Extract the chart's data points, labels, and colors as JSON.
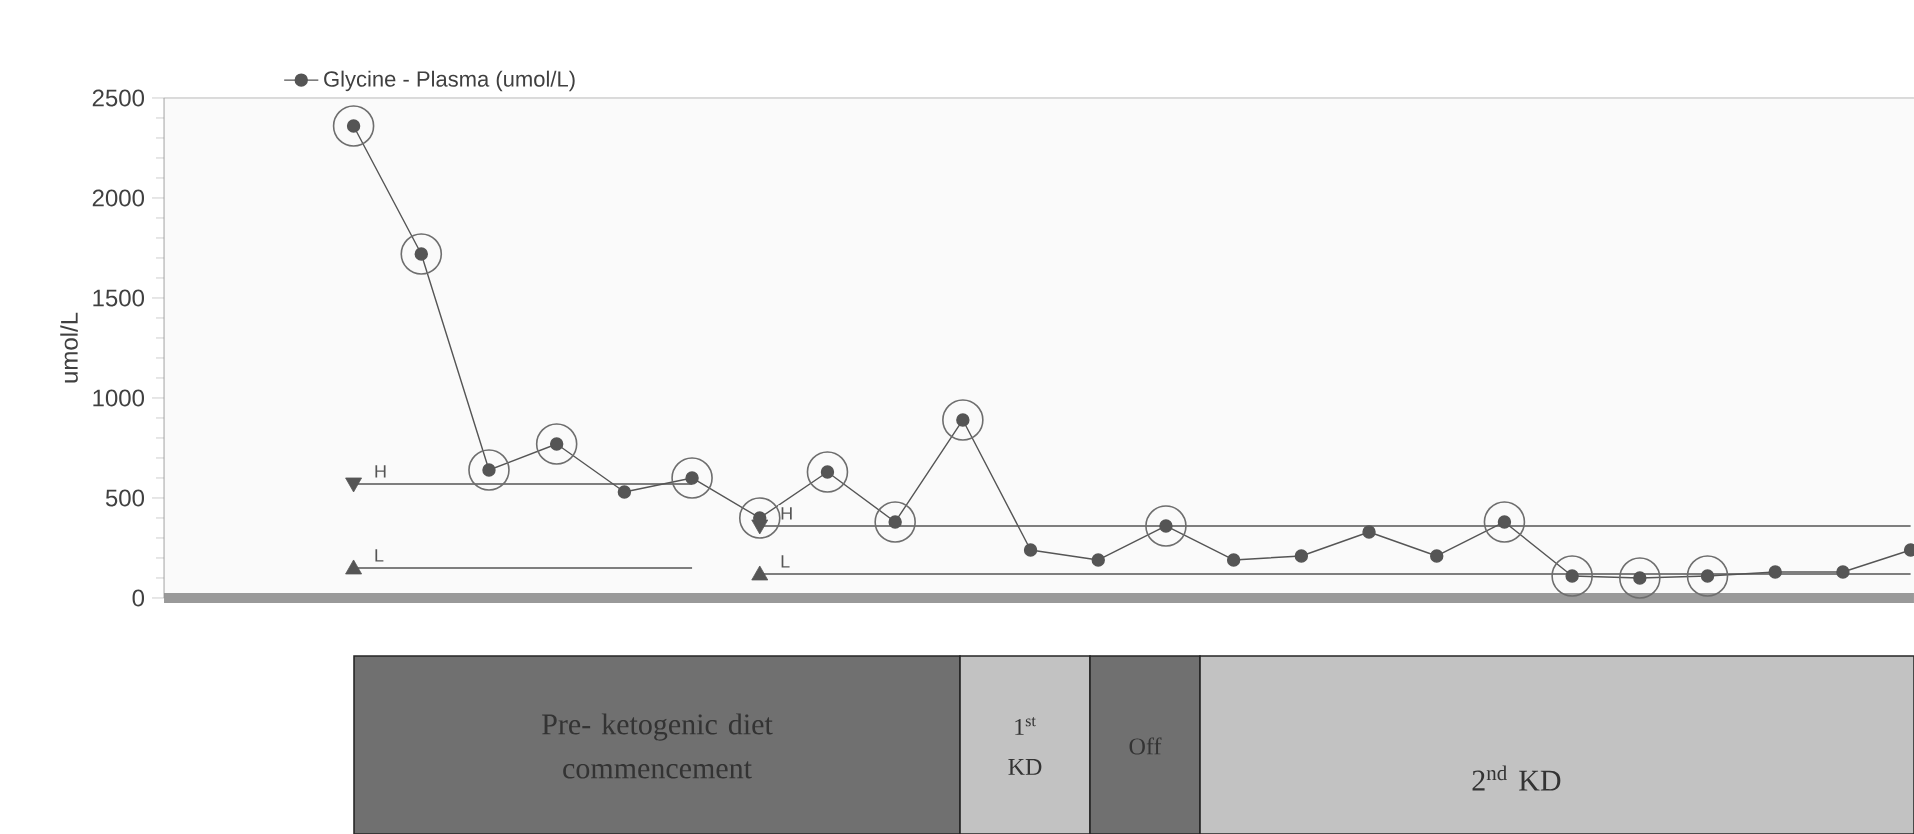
{
  "chart_data": {
    "type": "line",
    "ylabel": "umol/L",
    "legend": "top",
    "tick_labels": "y",
    "categories": [
      null,
      null,
      null,
      null,
      null,
      null,
      null,
      null,
      null,
      null,
      null,
      null,
      null,
      null,
      null,
      null,
      null,
      null,
      null,
      null,
      null,
      null,
      null,
      null
    ],
    "ylim": [
      0,
      2500
    ],
    "yticks": [
      0,
      500,
      1000,
      1500,
      2000,
      2500
    ],
    "series": [
      {
        "name": "Glycine - Plasma (umol/L)",
        "color": "#555555",
        "marker": "circle",
        "values": [
          2360,
          1720,
          640,
          770,
          530,
          600,
          400,
          630,
          380,
          890,
          240,
          190,
          360,
          190,
          210,
          330,
          210,
          380,
          110,
          100,
          110,
          130,
          130,
          240
        ]
      },
      {
        "type": "scatter",
        "color": "#6e6e6e",
        "marker": "circle",
        "values": [
          2360,
          1720,
          640,
          770,
          null,
          600,
          400,
          630,
          380,
          890,
          null,
          null,
          360,
          null,
          null,
          null,
          null,
          380,
          110,
          100,
          110,
          null,
          null,
          null
        ]
      },
      {
        "name": "H",
        "color": "#555555",
        "values": [
          570,
          570,
          570,
          570,
          570,
          570,
          null,
          null,
          null,
          null,
          null,
          null,
          null,
          null,
          null,
          null,
          null,
          null,
          null,
          null,
          null,
          null,
          null,
          null
        ]
      },
      {
        "name": "L",
        "color": "#555555",
        "values": [
          150,
          150,
          150,
          150,
          150,
          150,
          null,
          null,
          null,
          null,
          null,
          null,
          null,
          null,
          null,
          null,
          null,
          null,
          null,
          null,
          null,
          null,
          null,
          null
        ]
      },
      {
        "name": "H",
        "color": "#555555",
        "values": [
          null,
          null,
          null,
          null,
          null,
          null,
          360,
          360,
          360,
          360,
          360,
          360,
          360,
          360,
          360,
          360,
          360,
          360,
          360,
          360,
          360,
          360,
          360,
          360
        ]
      },
      {
        "name": "L",
        "color": "#555555",
        "values": [
          null,
          null,
          null,
          null,
          null,
          null,
          120,
          120,
          120,
          120,
          120,
          120,
          120,
          120,
          120,
          120,
          120,
          120,
          120,
          120,
          120,
          120,
          120,
          120
        ]
      }
    ],
    "annotations": [
      "Pre- ketogenic diet commencement",
      "1$^{st}$ KD",
      "Off",
      "2$^{nd}$ KD"
    ]
  }
}
